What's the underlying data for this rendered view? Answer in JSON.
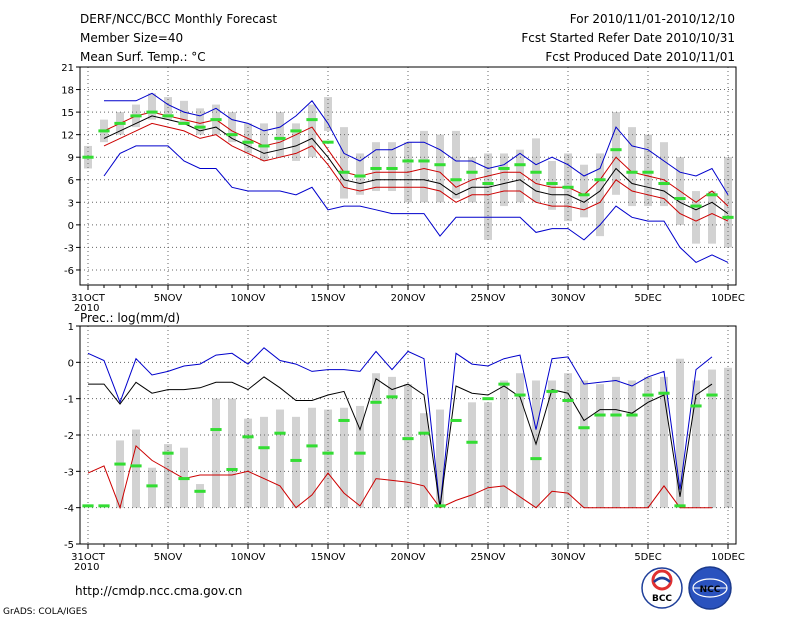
{
  "header": {
    "left": [
      "DERF/NCC/BCC Monthly Forecast",
      "Member Size=40",
      "Mean Surf. Temp.: °C"
    ],
    "right": [
      "For 2010/11/01-2010/12/10",
      "Fcst Started Refer Date 2010/10/31",
      "Fcst Produced Date 2010/11/01"
    ]
  },
  "footer": {
    "url": "http://cmdp.ncc.cma.gov.cn",
    "credit": "GrADS: COLA/IGES"
  },
  "logos": {
    "bcc": "BCC",
    "ncc": "NCC"
  },
  "colors": {
    "box": "#d2d2d2",
    "green": "#33dd33",
    "blue": "#0000cc",
    "red": "#cc0000",
    "black": "#000000",
    "grid": "#666666"
  },
  "chart_data": [
    {
      "type": "box",
      "title": "Mean Surf. Temp.: °C",
      "ylim": [
        -8,
        21
      ],
      "yticks": [
        21,
        18,
        15,
        12,
        9,
        6,
        3,
        0,
        -3,
        -6
      ],
      "xlim": [
        0.5,
        41.5
      ],
      "xticks": [
        {
          "day": 1,
          "label": "31OCT",
          "sub": "2010"
        },
        {
          "day": 6,
          "label": "5NOV"
        },
        {
          "day": 11,
          "label": "10NOV"
        },
        {
          "day": 16,
          "label": "15NOV"
        },
        {
          "day": 21,
          "label": "20NOV"
        },
        {
          "day": 26,
          "label": "25NOV"
        },
        {
          "day": 31,
          "label": "30NOV"
        },
        {
          "day": 36,
          "label": "5DEC"
        },
        {
          "day": 41,
          "label": "10DEC"
        }
      ],
      "box_lo": [
        7.5,
        11,
        12,
        13,
        14,
        14,
        13.5,
        12,
        12,
        11,
        9.5,
        8.5,
        9,
        8.5,
        9,
        12.5,
        3.5,
        4,
        4.5,
        4.5,
        3,
        3,
        3,
        3.5,
        3,
        -2,
        2.5,
        3,
        3,
        2,
        0.5,
        1,
        -1.5,
        4,
        2.5,
        2.5,
        2.5,
        0,
        -2.5,
        -2.5,
        -3
      ],
      "box_hi": [
        10.5,
        14,
        15,
        16,
        17.5,
        17,
        16.5,
        15.5,
        16,
        15,
        13.5,
        13.5,
        15,
        13.5,
        16,
        17,
        13,
        9.5,
        11,
        11,
        11,
        12.5,
        12,
        12.5,
        9,
        9.5,
        9.5,
        10,
        11.5,
        8.5,
        9.5,
        8,
        9.5,
        15,
        13,
        12,
        11,
        9,
        4.5,
        4.5,
        9
      ],
      "green": [
        9,
        12.5,
        13.5,
        14.5,
        15,
        14.5,
        13.5,
        13,
        14,
        12,
        11,
        10.5,
        11.5,
        12.5,
        14,
        11,
        7,
        6.5,
        7.5,
        7.5,
        8.5,
        8.5,
        8,
        6,
        7,
        5.5,
        7.5,
        8,
        7,
        5.5,
        5,
        4,
        6,
        10,
        7,
        7,
        5.5,
        3.5,
        2.5,
        4,
        1
      ],
      "series": [
        {
          "name": "mean",
          "color": "black",
          "values": [
            null,
            11.5,
            12.5,
            13.5,
            14.5,
            14,
            13.5,
            12.5,
            13,
            11.5,
            10.5,
            9.5,
            10,
            10.5,
            11.5,
            9,
            6,
            5.5,
            6,
            6,
            6,
            6,
            5.5,
            4,
            5,
            5,
            5.5,
            6,
            4.5,
            4,
            4,
            3,
            4.5,
            7.5,
            5.5,
            5,
            4.5,
            3,
            2,
            3,
            1.5
          ]
        },
        {
          "name": "upper-red",
          "color": "red",
          "values": [
            null,
            12.5,
            13.5,
            14.5,
            15,
            14.5,
            14,
            13.5,
            14,
            12.5,
            11.5,
            10.5,
            11,
            12,
            13,
            10,
            7,
            6.5,
            7,
            7,
            7,
            7.5,
            7,
            5,
            6,
            6.5,
            7,
            7,
            5.5,
            5,
            5,
            4,
            6,
            9,
            7,
            6.5,
            6,
            4.5,
            3,
            4.5,
            2.5
          ]
        },
        {
          "name": "lower-red",
          "color": "red",
          "values": [
            null,
            10.5,
            11.5,
            12.5,
            13.5,
            13,
            12.5,
            11.5,
            12,
            10.5,
            9.5,
            8.5,
            9,
            9.5,
            10.5,
            8,
            5,
            4.5,
            5,
            5,
            5,
            5,
            4.5,
            3,
            4,
            4,
            4.5,
            4.5,
            3,
            2.5,
            2.5,
            2,
            3,
            6,
            4.5,
            4,
            3.5,
            1.5,
            0.5,
            1.5,
            0.5
          ]
        },
        {
          "name": "upper-blue",
          "color": "blue",
          "values": [
            null,
            16.5,
            16.5,
            16.5,
            17.5,
            16,
            15,
            14.5,
            15.5,
            14,
            13.5,
            12.5,
            13,
            14.5,
            16.5,
            13.5,
            9.5,
            8.5,
            10,
            10,
            11,
            11,
            10,
            8.5,
            8.5,
            7.5,
            8,
            9.5,
            8,
            9,
            8,
            6.5,
            7.5,
            13,
            10.5,
            10,
            8.5,
            7,
            6.5,
            7.5,
            4
          ]
        },
        {
          "name": "lower-blue",
          "color": "blue",
          "values": [
            null,
            6.5,
            9.5,
            10.5,
            10.5,
            10.5,
            8.5,
            7.5,
            7.5,
            5,
            4.5,
            4.5,
            4.5,
            4,
            5,
            2,
            2.5,
            2.5,
            2,
            1.5,
            1.5,
            1.5,
            -1.5,
            1,
            1,
            1,
            1,
            1,
            -1,
            -0.5,
            -0.5,
            -2,
            0,
            2.5,
            1,
            0.5,
            0.5,
            -3,
            -5,
            -4,
            -5
          ]
        }
      ]
    },
    {
      "type": "box",
      "title": "Prec.: log(mm/d)",
      "ylim": [
        -5,
        1
      ],
      "yticks": [
        1,
        0,
        -1,
        -2,
        -3,
        -4,
        -5
      ],
      "xlim": [
        0.5,
        41.5
      ],
      "xticks": [
        {
          "day": 1,
          "label": "31OCT",
          "sub": "2010"
        },
        {
          "day": 6,
          "label": "5NOV"
        },
        {
          "day": 11,
          "label": "10NOV"
        },
        {
          "day": 16,
          "label": "15NOV"
        },
        {
          "day": 21,
          "label": "20NOV"
        },
        {
          "day": 26,
          "label": "25NOV"
        },
        {
          "day": 31,
          "label": "30NOV"
        },
        {
          "day": 36,
          "label": "5DEC"
        },
        {
          "day": 41,
          "label": "10DEC"
        }
      ],
      "base": -4,
      "box_hi": [
        null,
        null,
        -2.15,
        -1.85,
        -2.9,
        -2.25,
        -2.35,
        -3.35,
        -1,
        -1,
        -1.55,
        -1.5,
        -1.3,
        -1.5,
        -1.25,
        -1.3,
        -1.25,
        -1.2,
        -0.3,
        -0.4,
        -0.6,
        -1.4,
        -1.3,
        -4,
        -1.1,
        -1.1,
        -0.5,
        -0.3,
        -0.5,
        -0.5,
        -0.3,
        -0.5,
        -0.6,
        -0.4,
        -0.5,
        -0.4,
        -0.4,
        0.1,
        -0.5,
        -0.2,
        -0.15
      ],
      "green": [
        -3.95,
        -3.95,
        -2.8,
        -2.85,
        -3.4,
        -2.5,
        -3.2,
        -3.55,
        -1.85,
        -2.95,
        -2.05,
        -2.35,
        -1.95,
        -2.7,
        -2.3,
        -2.5,
        -1.6,
        -2.5,
        -1.1,
        -0.95,
        -2.1,
        -1.95,
        -3.95,
        -1.6,
        -2.2,
        -1,
        -0.6,
        -0.9,
        -2.65,
        -0.8,
        -1.05,
        -1.8,
        -1.45,
        -1.45,
        -1.45,
        -0.9,
        -0.85,
        -3.95,
        -1.2,
        -0.9,
        null
      ],
      "series": [
        {
          "name": "upper-blue",
          "color": "blue",
          "values": [
            0.25,
            0.05,
            -1.1,
            0.1,
            -0.35,
            -0.25,
            -0.1,
            -0.05,
            0.2,
            0.25,
            -0.05,
            0.4,
            0.05,
            -0.05,
            -0.25,
            -0.2,
            -0.2,
            -0.25,
            0.3,
            -0.2,
            0.3,
            0.1,
            -4,
            0.25,
            -0.05,
            -0.1,
            0.1,
            0.2,
            -1.85,
            0.1,
            0.15,
            -0.6,
            -0.55,
            -0.5,
            -0.65,
            -0.4,
            -0.25,
            -3.5,
            -0.2,
            0.15,
            null
          ]
        },
        {
          "name": "mean",
          "color": "black",
          "values": [
            -0.6,
            -0.6,
            -1.15,
            -0.55,
            -0.85,
            -0.75,
            -0.75,
            -0.7,
            -0.55,
            -0.55,
            -0.75,
            -0.4,
            -0.7,
            -1.05,
            -1.05,
            -0.9,
            -0.8,
            -1.85,
            -0.45,
            -0.75,
            -0.6,
            -0.9,
            -4,
            -0.65,
            -0.85,
            -0.9,
            -0.65,
            -0.95,
            -2.25,
            -0.75,
            -0.85,
            -1.6,
            -1.3,
            -1.3,
            -1.4,
            -1.1,
            -0.9,
            -3.7,
            -0.9,
            -0.6,
            null
          ]
        },
        {
          "name": "lower-red",
          "color": "red",
          "values": [
            -3.05,
            -2.85,
            -4,
            -2.3,
            -2.7,
            -2.95,
            -3.2,
            -3.1,
            -3.1,
            -3.1,
            -3,
            -3.2,
            -3.4,
            -4,
            -3.65,
            -3.05,
            -3.6,
            -3.95,
            -3.2,
            -3.25,
            -3.3,
            -3.4,
            -4,
            -3.8,
            -3.65,
            -3.45,
            -3.4,
            -3.7,
            -4,
            -3.55,
            -3.6,
            -4,
            -4,
            -4,
            -4,
            -4,
            -3.4,
            -4,
            -4,
            -4,
            null
          ]
        }
      ]
    }
  ]
}
